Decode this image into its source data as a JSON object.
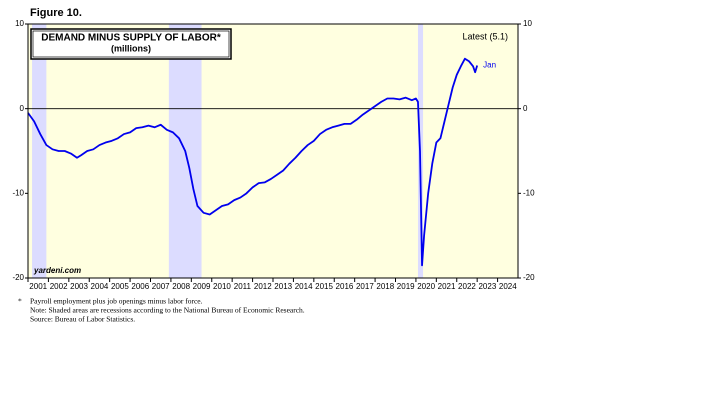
{
  "chart_data": {
    "type": "line",
    "figure_label": "Figure 10.",
    "title": "DEMAND MINUS SUPPLY OF LABOR*",
    "subtitle": "(millions)",
    "latest_label": "Latest (5.1)",
    "end_label": "Jan",
    "watermark": "yardeni.com",
    "footnote_marker": "*",
    "footnotes": [
      "Payroll employment plus job openings minus labor force.",
      "Note: Shaded areas are recessions according to the National Bureau of Economic Research.",
      "Source: Bureau of Labor Statistics."
    ],
    "color": "#0000ee",
    "recession_color": "#dcdcff",
    "recessions": [
      [
        2001.2,
        2001.9
      ],
      [
        2007.9,
        2009.5
      ],
      [
        2020.1,
        2020.35
      ]
    ],
    "xlim": [
      2001,
      2025
    ],
    "xticks": [
      2001,
      2002,
      2003,
      2004,
      2005,
      2006,
      2007,
      2008,
      2009,
      2010,
      2011,
      2012,
      2013,
      2014,
      2015,
      2016,
      2017,
      2018,
      2019,
      2020,
      2021,
      2022,
      2023,
      2024
    ],
    "ylim": [
      -20,
      10
    ],
    "yticks": [
      -20,
      -10,
      0,
      10
    ],
    "x": [
      2001.0,
      2001.3,
      2001.6,
      2001.9,
      2002.2,
      2002.5,
      2002.8,
      2003.1,
      2003.4,
      2003.6,
      2003.9,
      2004.2,
      2004.5,
      2004.8,
      2005.1,
      2005.4,
      2005.7,
      2006.0,
      2006.3,
      2006.6,
      2006.9,
      2007.2,
      2007.5,
      2007.8,
      2008.1,
      2008.4,
      2008.7,
      2008.9,
      2009.1,
      2009.3,
      2009.6,
      2009.9,
      2010.2,
      2010.5,
      2010.8,
      2011.1,
      2011.4,
      2011.7,
      2012.0,
      2012.3,
      2012.6,
      2012.9,
      2013.2,
      2013.5,
      2013.8,
      2014.1,
      2014.4,
      2014.7,
      2015.0,
      2015.3,
      2015.6,
      2015.9,
      2016.2,
      2016.5,
      2016.8,
      2017.1,
      2017.4,
      2017.7,
      2018.0,
      2018.3,
      2018.6,
      2018.9,
      2019.2,
      2019.5,
      2019.8,
      2020.0,
      2020.1,
      2020.2,
      2020.3,
      2020.4,
      2020.6,
      2020.8,
      2021.0,
      2021.2,
      2021.4,
      2021.6,
      2021.8,
      2022.0,
      2022.2,
      2022.4,
      2022.6,
      2022.8,
      2022.9,
      2023.0
    ],
    "values": [
      -0.5,
      -1.5,
      -3,
      -4.3,
      -4.8,
      -5,
      -5,
      -5.3,
      -5.8,
      -5.5,
      -5,
      -4.8,
      -4.3,
      -4,
      -3.8,
      -3.5,
      -3,
      -2.8,
      -2.3,
      -2.2,
      -2,
      -2.2,
      -1.9,
      -2.5,
      -2.8,
      -3.5,
      -5,
      -7,
      -9.5,
      -11.5,
      -12.3,
      -12.5,
      -12,
      -11.5,
      -11.3,
      -10.8,
      -10.5,
      -10,
      -9.3,
      -8.8,
      -8.7,
      -8.3,
      -7.8,
      -7.3,
      -6.5,
      -5.8,
      -5,
      -4.3,
      -3.8,
      -3,
      -2.5,
      -2.2,
      -2,
      -1.8,
      -1.8,
      -1.3,
      -0.7,
      -0.2,
      0.3,
      0.8,
      1.2,
      1.2,
      1.1,
      1.3,
      1,
      1.2,
      0.8,
      -5,
      -18.5,
      -15,
      -10,
      -6.5,
      -4,
      -3.5,
      -1.5,
      0.5,
      2.5,
      4,
      5,
      5.9,
      5.6,
      5,
      4.3,
      5.1
    ]
  }
}
